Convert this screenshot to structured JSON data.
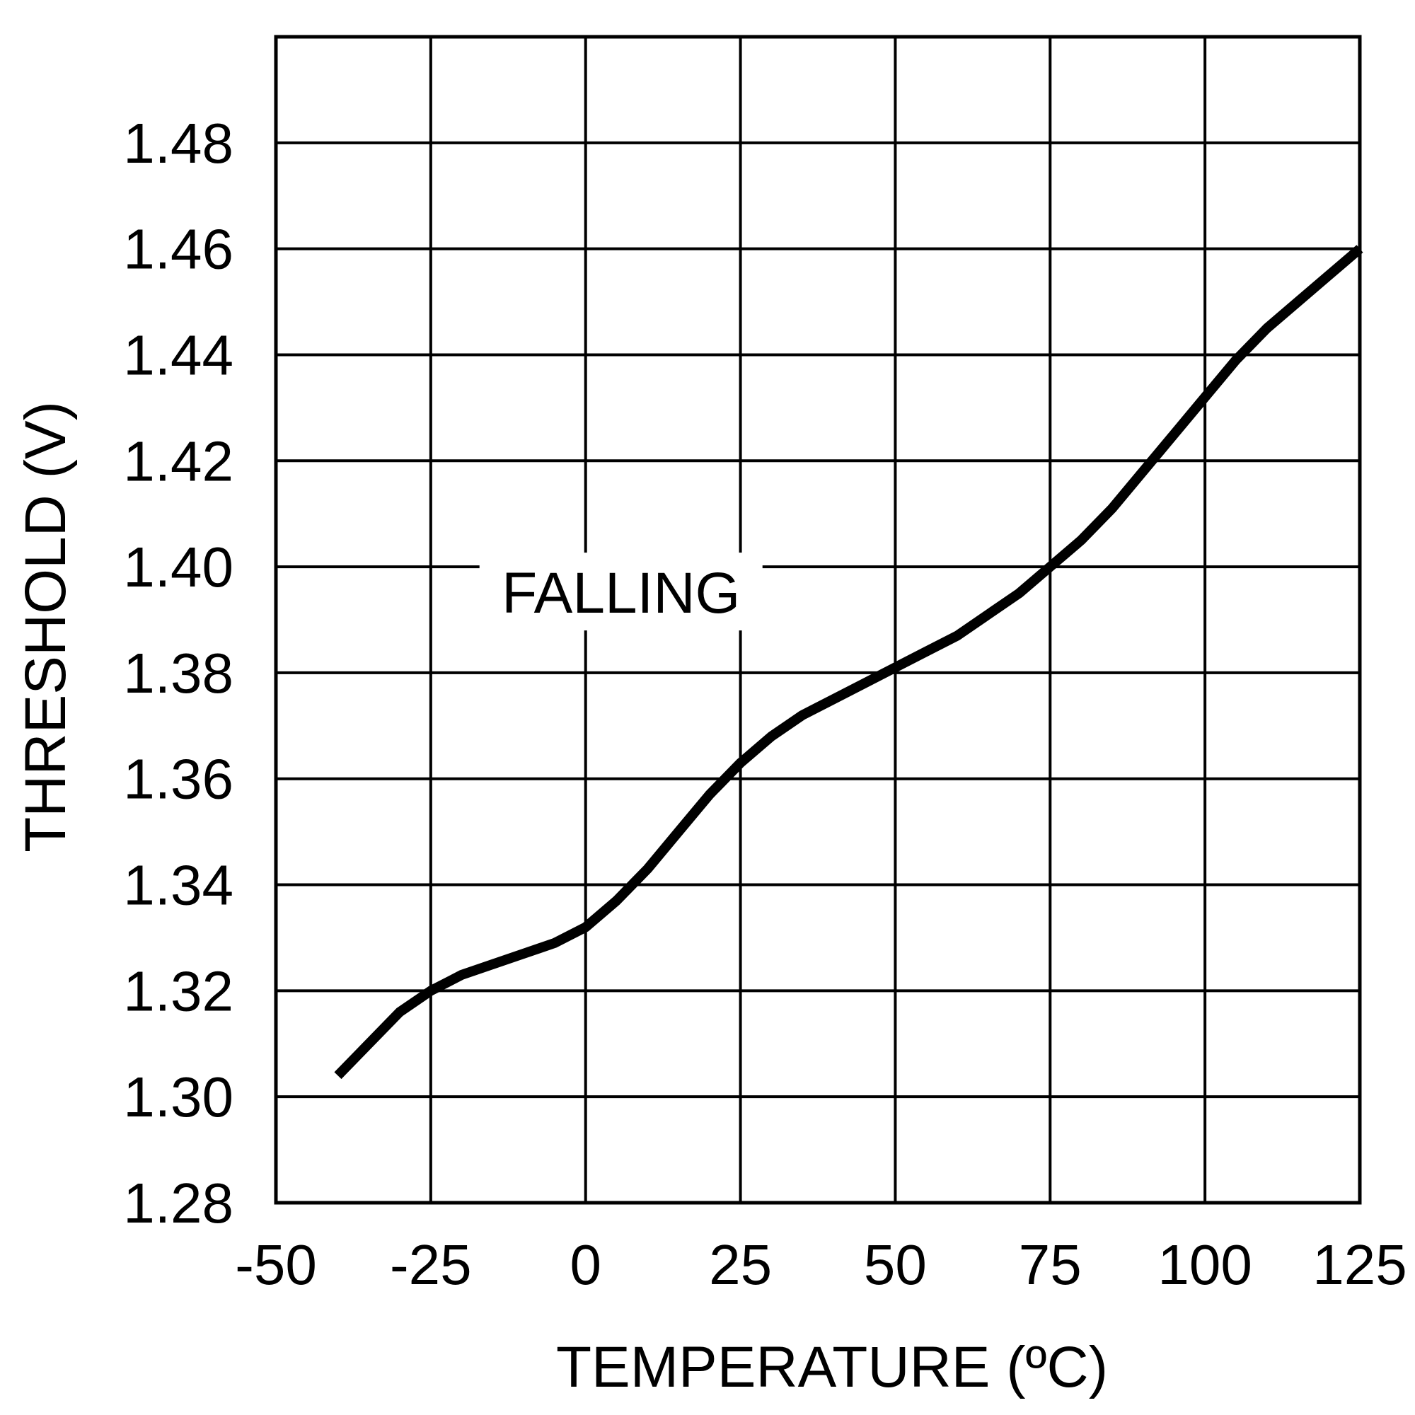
{
  "chart_data": {
    "type": "line",
    "xlabel": "TEMPERATURE (ºC)",
    "ylabel": "THRESHOLD (V)",
    "xlim": [
      -50,
      125
    ],
    "ylim": [
      1.28,
      1.5
    ],
    "x_ticks": [
      -50,
      -25,
      0,
      25,
      50,
      75,
      100,
      125
    ],
    "y_ticks": [
      1.28,
      1.3,
      1.32,
      1.34,
      1.36,
      1.38,
      1.4,
      1.42,
      1.44,
      1.46,
      1.48
    ],
    "y_tick_labels": [
      "1.28",
      "1.30",
      "1.32",
      "1.34",
      "1.36",
      "1.38",
      "1.40",
      "1.42",
      "1.44",
      "1.46",
      "1.48"
    ],
    "grid": true,
    "annotation": "FALLING",
    "series": [
      {
        "x": [
          -40,
          -30,
          -25,
          -20,
          -15,
          -10,
          -5,
          0,
          5,
          10,
          15,
          20,
          25,
          30,
          35,
          40,
          45,
          50,
          55,
          60,
          65,
          70,
          75,
          80,
          85,
          90,
          95,
          100,
          105,
          110,
          115,
          120,
          125
        ],
        "y": [
          1.304,
          1.316,
          1.32,
          1.323,
          1.325,
          1.327,
          1.329,
          1.332,
          1.337,
          1.343,
          1.35,
          1.357,
          1.363,
          1.368,
          1.372,
          1.375,
          1.378,
          1.381,
          1.384,
          1.387,
          1.391,
          1.395,
          1.4,
          1.405,
          1.411,
          1.418,
          1.425,
          1.432,
          1.439,
          1.445,
          1.45,
          1.455,
          1.46
        ],
        "color": "#000000"
      }
    ]
  }
}
